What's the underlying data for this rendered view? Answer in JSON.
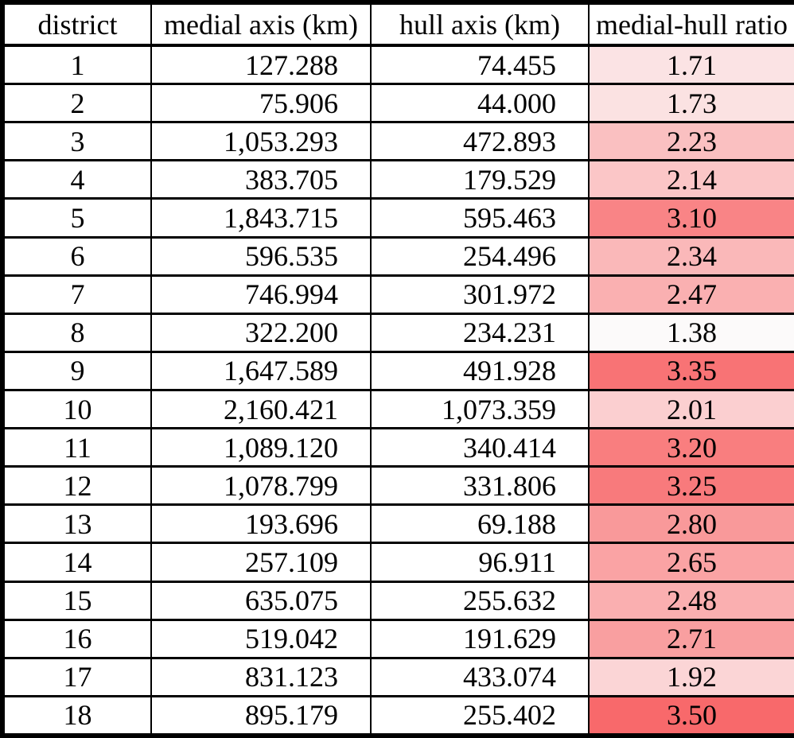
{
  "chart_data": {
    "type": "table",
    "title": "",
    "columns": [
      "district",
      "medial axis (km)",
      "hull axis (km)",
      "medial-hull ratio"
    ],
    "rows": [
      {
        "district": "1",
        "medial_axis_km": "127.288",
        "hull_axis_km": "74.455",
        "ratio": "1.71",
        "ratio_color": "#FBE3E4"
      },
      {
        "district": "2",
        "medial_axis_km": "75.906",
        "hull_axis_km": "44.000",
        "ratio": "1.73",
        "ratio_color": "#FBE2E2"
      },
      {
        "district": "3",
        "medial_axis_km": "1,053.293",
        "hull_axis_km": "472.893",
        "ratio": "2.23",
        "ratio_color": "#FAC0C1"
      },
      {
        "district": "4",
        "medial_axis_km": "383.705",
        "hull_axis_km": "179.529",
        "ratio": "2.14",
        "ratio_color": "#FBC6C7"
      },
      {
        "district": "5",
        "medial_axis_km": "1,843.715",
        "hull_axis_km": "595.463",
        "ratio": "3.10",
        "ratio_color": "#F98486"
      },
      {
        "district": "6",
        "medial_axis_km": "596.535",
        "hull_axis_km": "254.496",
        "ratio": "2.34",
        "ratio_color": "#FAB8B9"
      },
      {
        "district": "7",
        "medial_axis_km": "746.994",
        "hull_axis_km": "301.972",
        "ratio": "2.47",
        "ratio_color": "#FAB0B1"
      },
      {
        "district": "8",
        "medial_axis_km": "322.200",
        "hull_axis_km": "234.231",
        "ratio": "1.38",
        "ratio_color": "#FCFAFA"
      },
      {
        "district": "9",
        "medial_axis_km": "1,647.589",
        "hull_axis_km": "491.928",
        "ratio": "3.35",
        "ratio_color": "#F87375"
      },
      {
        "district": "10",
        "medial_axis_km": "2,160.421",
        "hull_axis_km": "1,073.359",
        "ratio": "2.01",
        "ratio_color": "#FBCFD0"
      },
      {
        "district": "11",
        "medial_axis_km": "1,089.120",
        "hull_axis_km": "340.414",
        "ratio": "3.20",
        "ratio_color": "#F97E7F"
      },
      {
        "district": "12",
        "medial_axis_km": "1,078.799",
        "hull_axis_km": "331.806",
        "ratio": "3.25",
        "ratio_color": "#F87A7C"
      },
      {
        "district": "13",
        "medial_axis_km": "193.696",
        "hull_axis_km": "69.188",
        "ratio": "2.80",
        "ratio_color": "#F9999A"
      },
      {
        "district": "14",
        "medial_axis_km": "257.109",
        "hull_axis_km": "96.911",
        "ratio": "2.65",
        "ratio_color": "#FAA3A4"
      },
      {
        "district": "15",
        "medial_axis_km": "635.075",
        "hull_axis_km": "255.632",
        "ratio": "2.48",
        "ratio_color": "#FAAFB0"
      },
      {
        "district": "16",
        "medial_axis_km": "519.042",
        "hull_axis_km": "191.629",
        "ratio": "2.71",
        "ratio_color": "#F99FA0"
      },
      {
        "district": "17",
        "medial_axis_km": "831.123",
        "hull_axis_km": "433.074",
        "ratio": "1.92",
        "ratio_color": "#FBD5D6"
      },
      {
        "district": "18",
        "medial_axis_km": "895.179",
        "hull_axis_km": "255.402",
        "ratio": "3.50",
        "ratio_color": "#F8696B"
      }
    ],
    "heatmap": {
      "column": "medial-hull ratio",
      "min_value": 1.38,
      "max_value": 3.5,
      "min_color": "#FCFAFA",
      "max_color": "#F8696B"
    },
    "layout_hints": {
      "grid": "all black borders",
      "numeric_columns_alignment": "right",
      "district_and_ratio_alignment": "center"
    }
  },
  "styles": {
    "border_color": "#000000",
    "background_color": "#FFFFFF",
    "text_color": "#000000"
  }
}
